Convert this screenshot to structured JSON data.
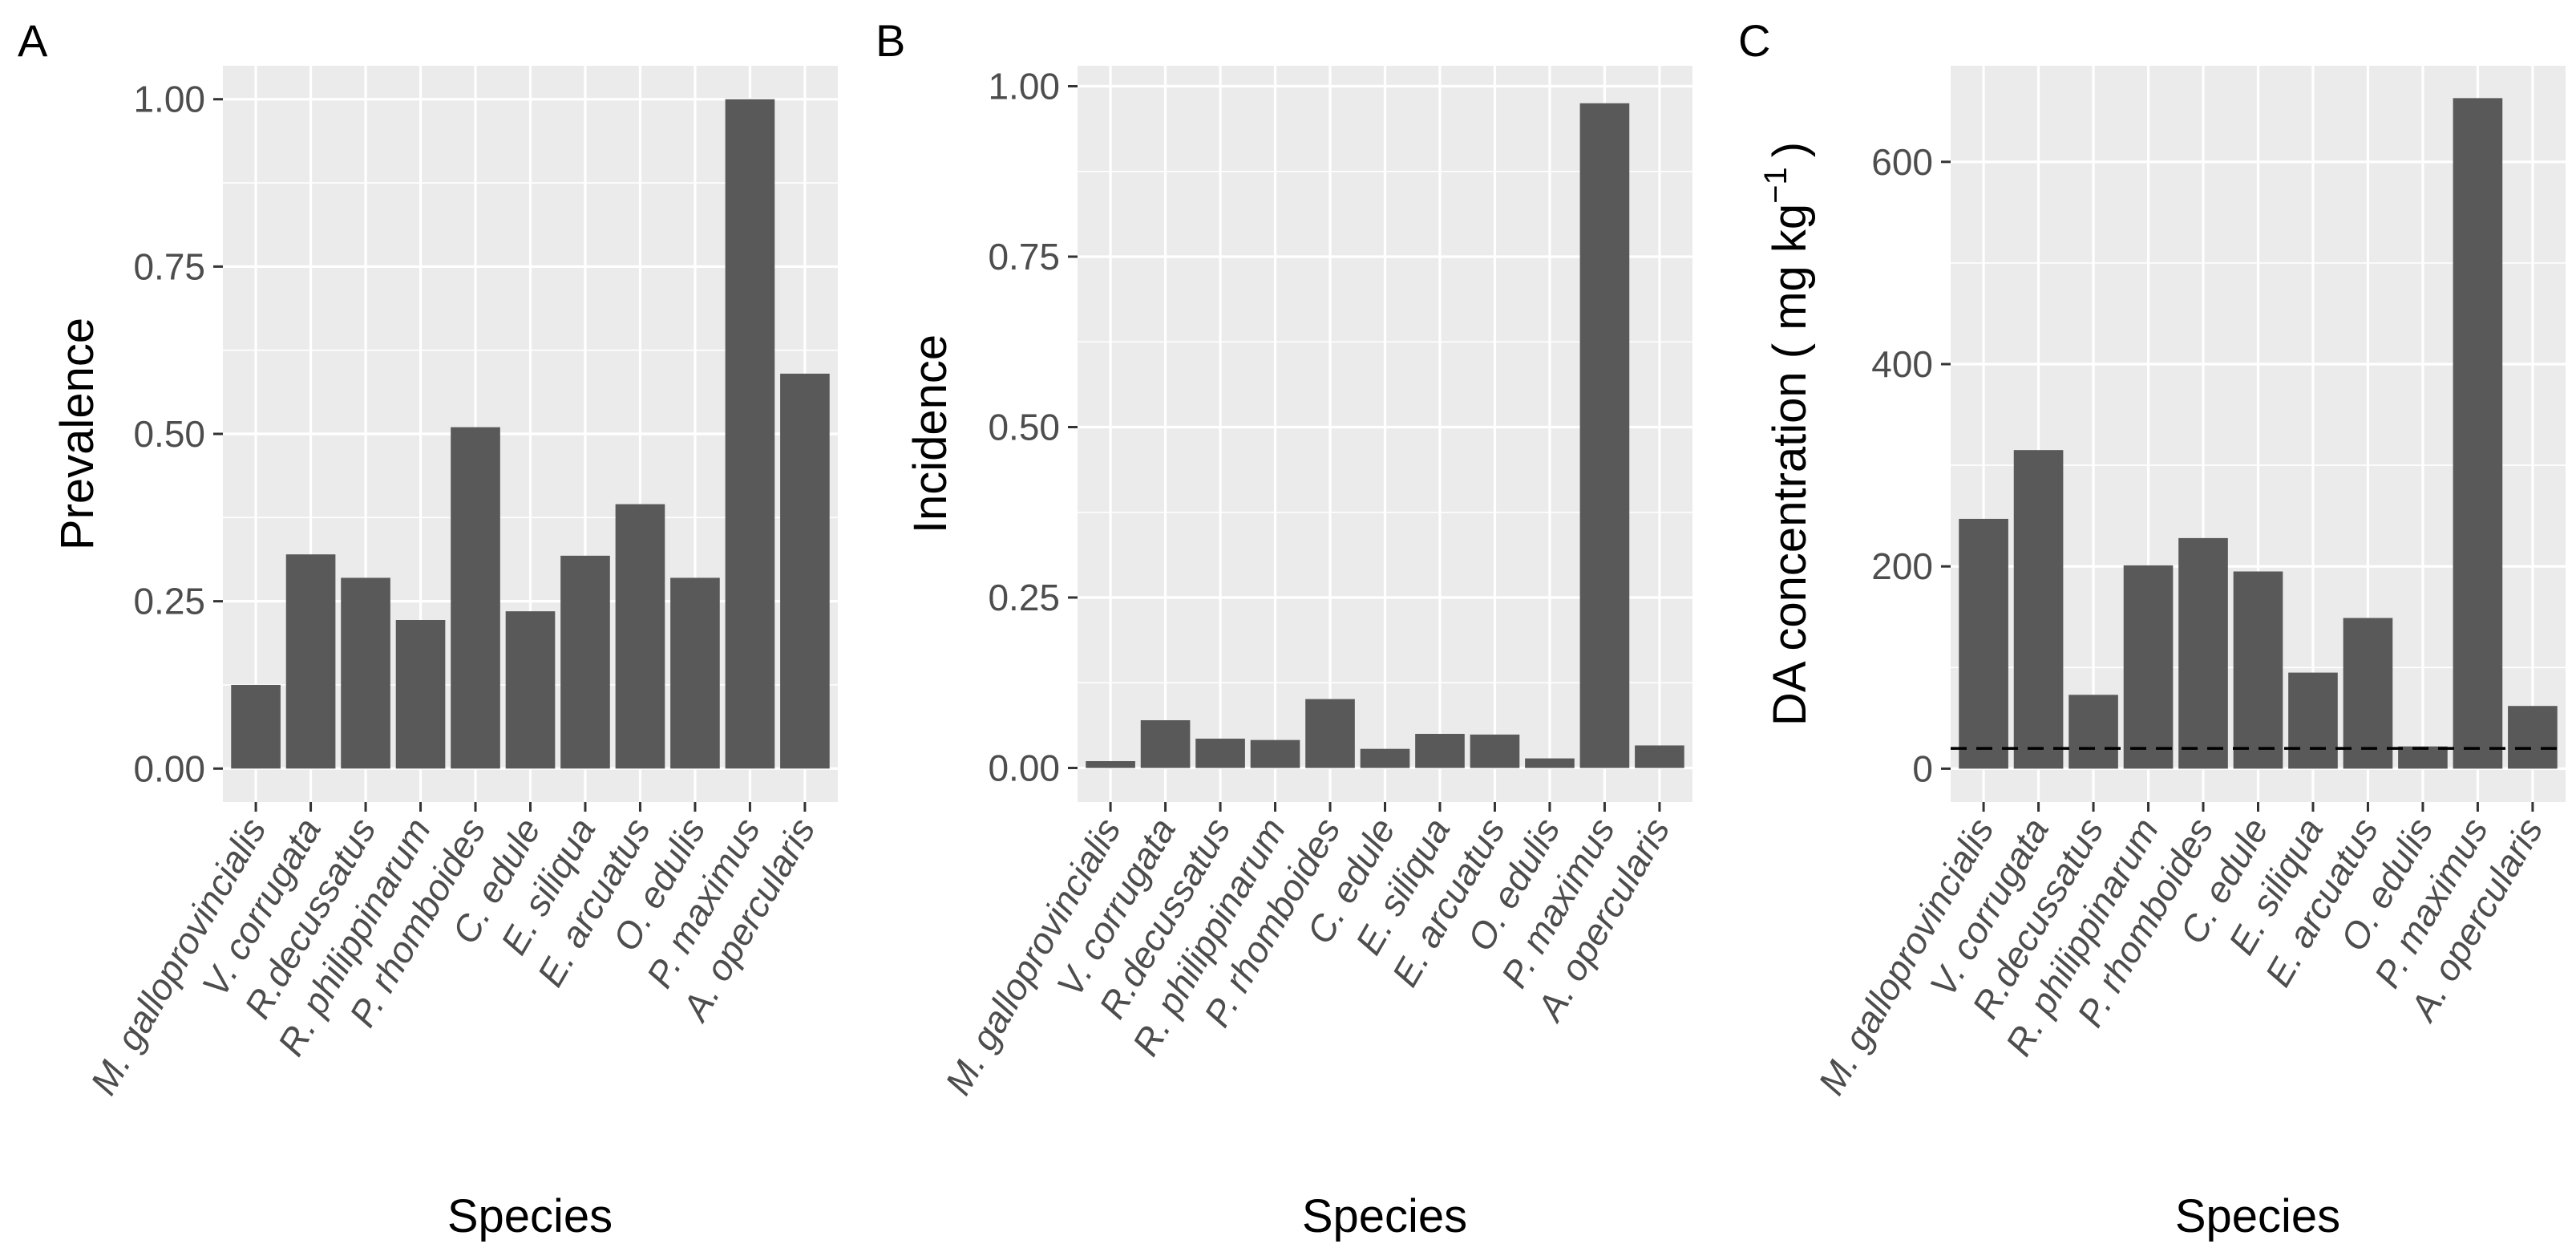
{
  "figure": {
    "panels": [
      {
        "tag": "A",
        "xlabel": "Species",
        "ylabel": "Prevalence"
      },
      {
        "tag": "B",
        "xlabel": "Species",
        "ylabel": "Incidence"
      },
      {
        "tag": "C",
        "xlabel": "Species",
        "ylabel_main": "DA concentration ( mg kg",
        "ylabel_sup": "−1",
        "ylabel_end": ")"
      }
    ]
  },
  "colors": {
    "bar": "#595959",
    "panel_background": "#ebebeb",
    "grid": "#ffffff",
    "reference_line": "#000000"
  },
  "chart_data": [
    {
      "type": "bar",
      "title": "A",
      "xlabel": "Species",
      "ylabel": "Prevalence",
      "categories": [
        "M. galloprovincialis",
        "V. corrugata",
        "R.decussatus",
        "R. philippinarum",
        "P. rhomboides",
        "C. edule",
        "E. siliqua",
        "E. arcuatus",
        "O. edulis",
        "P. maximus",
        "A. opercularis"
      ],
      "values": [
        0.125,
        0.32,
        0.285,
        0.222,
        0.51,
        0.235,
        0.318,
        0.395,
        0.285,
        1.0,
        0.59
      ],
      "ylim": [
        -0.05,
        1.05
      ],
      "yticks": [
        0,
        0.25,
        0.5,
        0.75,
        1.0
      ],
      "ytick_labels": [
        "0.00",
        "0.25",
        "0.50",
        "0.75",
        "1.00"
      ],
      "grid": true
    },
    {
      "type": "bar",
      "title": "B",
      "xlabel": "Species",
      "ylabel": "Incidence",
      "categories": [
        "M. galloprovincialis",
        "V. corrugata",
        "R.decussatus",
        "R. philippinarum",
        "P. rhomboides",
        "C. edule",
        "E. siliqua",
        "E. arcuatus",
        "O. edulis",
        "P. maximus",
        "A. opercularis"
      ],
      "values": [
        0.01,
        0.07,
        0.043,
        0.041,
        0.101,
        0.028,
        0.05,
        0.049,
        0.014,
        0.975,
        0.033
      ],
      "ylim": [
        -0.05,
        1.03
      ],
      "yticks": [
        0,
        0.25,
        0.5,
        0.75,
        1.0
      ],
      "ytick_labels": [
        "0.00",
        "0.25",
        "0.50",
        "0.75",
        "1.00"
      ],
      "grid": true
    },
    {
      "type": "bar",
      "title": "C",
      "xlabel": "Species",
      "ylabel": "DA concentration ( mg kg−1)",
      "categories": [
        "M. galloprovincialis",
        "V. corrugata",
        "R.decussatus",
        "R. philippinarum",
        "P. rhomboides",
        "C. edule",
        "E. siliqua",
        "E. arcuatus",
        "O. edulis",
        "P. maximus",
        "A. opercularis"
      ],
      "values": [
        247,
        315,
        73,
        201,
        228,
        195,
        95,
        149,
        22,
        663,
        62
      ],
      "ylim": [
        -33,
        695
      ],
      "yticks": [
        0,
        200,
        400,
        600
      ],
      "ytick_labels": [
        "0",
        "200",
        "400",
        "600"
      ],
      "reference_line": 20,
      "grid": true
    }
  ]
}
